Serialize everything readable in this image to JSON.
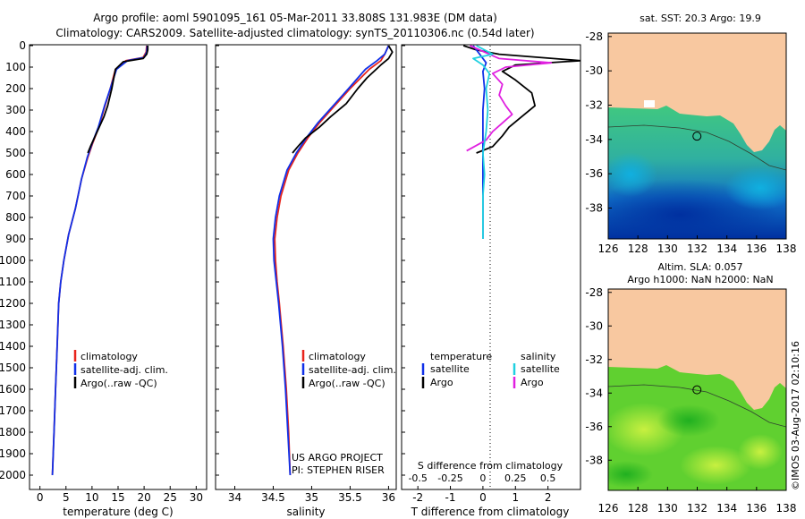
{
  "header": {
    "title_line1": "Argo profile: aoml 5901095_161 05-Mar-2011 33.808S 131.983E (DM data)",
    "title_line2": "Climatology: CARS2009. Satellite-adjusted climatology: synTS_20110306.nc (0.54d later)"
  },
  "colors": {
    "climatology": "#e8241c",
    "satellite_adj": "#1030e8",
    "argo": "#000000",
    "salinity_satellite": "#20d0e0",
    "salinity_argo": "#e020e0",
    "land": "#f8c8a0"
  },
  "depth_axis": {
    "ticks": [
      0,
      100,
      200,
      300,
      400,
      500,
      600,
      700,
      800,
      900,
      1000,
      1100,
      1200,
      1300,
      1400,
      1500,
      1600,
      1700,
      1800,
      1900,
      2000
    ]
  },
  "chart_data": [
    {
      "id": "temperature",
      "type": "line",
      "xlabel": "temperature (deg C)",
      "xlim": [
        -2,
        32
      ],
      "ylim": [
        2050,
        0
      ],
      "xticks": [
        0,
        5,
        10,
        15,
        20,
        25,
        30
      ],
      "legend": [
        "climatology",
        "satellite-adj. clim.",
        "Argo(..raw -QC)"
      ],
      "series": [
        {
          "name": "climatology",
          "color": "#e8241c",
          "points": [
            [
              20.5,
              0
            ],
            [
              20.4,
              30
            ],
            [
              19.8,
              55
            ],
            [
              16.5,
              70
            ],
            [
              14.5,
              110
            ],
            [
              13.5,
              200
            ],
            [
              12.5,
              280
            ],
            [
              11.3,
              380
            ],
            [
              10.2,
              450
            ],
            [
              9.2,
              520
            ],
            [
              8.0,
              620
            ],
            [
              6.8,
              760
            ],
            [
              5.5,
              880
            ],
            [
              4.6,
              1000
            ],
            [
              4.0,
              1100
            ],
            [
              3.6,
              1200
            ],
            [
              3.3,
              1400
            ],
            [
              3.0,
              1600
            ],
            [
              2.7,
              1800
            ],
            [
              2.4,
              2000
            ]
          ]
        },
        {
          "name": "satellite-adj. clim.",
          "color": "#1030e8",
          "points": [
            [
              20.6,
              0
            ],
            [
              20.5,
              30
            ],
            [
              20.0,
              55
            ],
            [
              16.8,
              70
            ],
            [
              14.7,
              110
            ],
            [
              13.5,
              200
            ],
            [
              12.4,
              280
            ],
            [
              11.2,
              380
            ],
            [
              10.1,
              450
            ],
            [
              9.1,
              520
            ],
            [
              8.0,
              620
            ],
            [
              6.8,
              760
            ],
            [
              5.5,
              880
            ],
            [
              4.6,
              1000
            ],
            [
              4.0,
              1100
            ],
            [
              3.6,
              1200
            ],
            [
              3.3,
              1400
            ],
            [
              3.0,
              1600
            ],
            [
              2.7,
              1800
            ],
            [
              2.4,
              2000
            ]
          ]
        },
        {
          "name": "Argo(..raw -QC)",
          "color": "#000000",
          "points": [
            [
              20.7,
              0
            ],
            [
              20.7,
              20
            ],
            [
              20.5,
              40
            ],
            [
              19.8,
              60
            ],
            [
              16.0,
              75
            ],
            [
              14.5,
              110
            ],
            [
              13.8,
              200
            ],
            [
              13.0,
              280
            ],
            [
              12.3,
              330
            ],
            [
              11.0,
              400
            ],
            [
              9.7,
              470
            ],
            [
              9.2,
              500
            ]
          ]
        }
      ],
      "annotations": []
    },
    {
      "id": "salinity",
      "type": "line",
      "xlabel": "salinity",
      "xlim": [
        33.75,
        36.1
      ],
      "ylim": [
        2050,
        0
      ],
      "xticks": [
        34,
        34.5,
        35,
        35.5,
        36
      ],
      "legend": [
        "climatology",
        "satellite-adj. clim.",
        "Argo(..raw -QC)"
      ],
      "series": [
        {
          "name": "climatology",
          "color": "#e8241c",
          "points": [
            [
              36.0,
              0
            ],
            [
              35.95,
              40
            ],
            [
              35.9,
              70
            ],
            [
              35.75,
              110
            ],
            [
              35.5,
              200
            ],
            [
              35.3,
              280
            ],
            [
              35.1,
              360
            ],
            [
              34.95,
              430
            ],
            [
              34.82,
              500
            ],
            [
              34.7,
              580
            ],
            [
              34.6,
              700
            ],
            [
              34.55,
              800
            ],
            [
              34.52,
              900
            ],
            [
              34.53,
              1000
            ],
            [
              34.55,
              1100
            ],
            [
              34.58,
              1200
            ],
            [
              34.63,
              1400
            ],
            [
              34.67,
              1600
            ],
            [
              34.7,
              1800
            ],
            [
              34.72,
              2000
            ]
          ]
        },
        {
          "name": "satellite-adj. clim.",
          "color": "#1030e8",
          "points": [
            [
              36.0,
              0
            ],
            [
              35.95,
              40
            ],
            [
              35.85,
              70
            ],
            [
              35.7,
              110
            ],
            [
              35.48,
              200
            ],
            [
              35.28,
              280
            ],
            [
              35.08,
              360
            ],
            [
              34.93,
              430
            ],
            [
              34.8,
              500
            ],
            [
              34.68,
              580
            ],
            [
              34.58,
              700
            ],
            [
              34.53,
              800
            ],
            [
              34.5,
              900
            ],
            [
              34.51,
              1000
            ],
            [
              34.54,
              1100
            ],
            [
              34.57,
              1200
            ],
            [
              34.62,
              1400
            ],
            [
              34.66,
              1600
            ],
            [
              34.69,
              1800
            ],
            [
              34.72,
              2000
            ]
          ]
        },
        {
          "name": "Argo(..raw -QC)",
          "color": "#000000",
          "points": [
            [
              36.0,
              0
            ],
            [
              36.05,
              30
            ],
            [
              36.0,
              60
            ],
            [
              35.9,
              90
            ],
            [
              35.72,
              150
            ],
            [
              35.6,
              200
            ],
            [
              35.45,
              270
            ],
            [
              35.25,
              330
            ],
            [
              35.1,
              380
            ],
            [
              34.92,
              430
            ],
            [
              34.82,
              470
            ],
            [
              34.75,
              500
            ]
          ]
        }
      ],
      "annotations": [
        "US ARGO PROJECT",
        "PI: STEPHEN RISER"
      ]
    },
    {
      "id": "difference",
      "type": "line",
      "xlabel": "T difference from climatology",
      "top_label": "S difference from climatology",
      "xlim": [
        -2.5,
        3
      ],
      "top_xlim": [
        -0.625,
        0.75
      ],
      "ylim": [
        2050,
        0
      ],
      "xticks": [
        -2,
        -1,
        0,
        1,
        2
      ],
      "top_xticks": [
        -0.5,
        -0.25,
        0,
        0.25,
        0.5
      ],
      "top_xtick_labels": [
        "-0.5",
        "-0.25",
        "0",
        "0.25",
        "0.5"
      ],
      "legend_temperature": {
        "title": "temperature",
        "items": [
          "satellite",
          "Argo"
        ]
      },
      "legend_salinity": {
        "title": "salinity",
        "items": [
          "satellite",
          "Argo"
        ]
      },
      "series": [
        {
          "name": "temperature Argo",
          "color": "#000000",
          "points": [
            [
              -0.6,
              0
            ],
            [
              -0.2,
              20
            ],
            [
              0.5,
              40
            ],
            [
              3.0,
              70
            ],
            [
              1.0,
              90
            ],
            [
              0.6,
              120
            ],
            [
              1.0,
              160
            ],
            [
              1.5,
              220
            ],
            [
              1.6,
              280
            ],
            [
              1.2,
              330
            ],
            [
              0.8,
              380
            ],
            [
              0.6,
              420
            ],
            [
              0.3,
              470
            ],
            [
              -0.2,
              500
            ]
          ]
        },
        {
          "name": "temperature satellite",
          "color": "#1030e8",
          "points": [
            [
              -0.3,
              0
            ],
            [
              -0.1,
              40
            ],
            [
              0.1,
              80
            ],
            [
              0.0,
              120
            ],
            [
              0.05,
              200
            ],
            [
              0.0,
              300
            ],
            [
              0.0,
              500
            ],
            [
              0.0,
              900
            ]
          ]
        },
        {
          "name": "salinity Argo",
          "color": "#e020e0",
          "points": [
            [
              -0.4,
              0
            ],
            [
              0.5,
              60
            ],
            [
              2.1,
              80
            ],
            [
              0.7,
              100
            ],
            [
              0.3,
              130
            ],
            [
              0.6,
              180
            ],
            [
              0.5,
              230
            ],
            [
              0.7,
              280
            ],
            [
              0.9,
              320
            ],
            [
              0.6,
              360
            ],
            [
              0.3,
              400
            ],
            [
              0.1,
              440
            ],
            [
              -0.5,
              490
            ]
          ]
        },
        {
          "name": "salinity satellite",
          "color": "#20d0e0",
          "points": [
            [
              -0.2,
              0
            ],
            [
              0.3,
              40
            ],
            [
              -0.3,
              60
            ],
            [
              0.0,
              90
            ],
            [
              0.2,
              130
            ],
            [
              0.1,
              200
            ],
            [
              0.15,
              300
            ],
            [
              0.1,
              400
            ],
            [
              0.0,
              500
            ],
            [
              0.05,
              600
            ],
            [
              0.0,
              700
            ],
            [
              0.0,
              800
            ],
            [
              0.0,
              900
            ]
          ]
        }
      ]
    },
    {
      "id": "map_sst",
      "type": "heatmap",
      "title": "sat. SST: 20.3 Argo: 19.9",
      "xlim": [
        126,
        138
      ],
      "ylim": [
        -39.8,
        -27.8
      ],
      "xticks": [
        126,
        128,
        130,
        132,
        134,
        136,
        138
      ],
      "yticks": [
        -28,
        -30,
        -32,
        -34,
        -36,
        -38
      ],
      "marker": [
        131.983,
        -33.808
      ]
    },
    {
      "id": "map_sla",
      "type": "heatmap",
      "title_line1": "Altim. SLA: 0.057",
      "title_line2": "Argo h1000: NaN h2000: NaN",
      "xlim": [
        126,
        138
      ],
      "ylim": [
        -39.8,
        -27.8
      ],
      "xticks": [
        126,
        128,
        130,
        132,
        134,
        136,
        138
      ],
      "yticks": [
        -28,
        -30,
        -32,
        -34,
        -36,
        -38
      ],
      "marker": [
        131.983,
        -33.808
      ]
    }
  ],
  "footer": {
    "credit": "©IMOS 03-Aug-2017 02:10:16"
  }
}
